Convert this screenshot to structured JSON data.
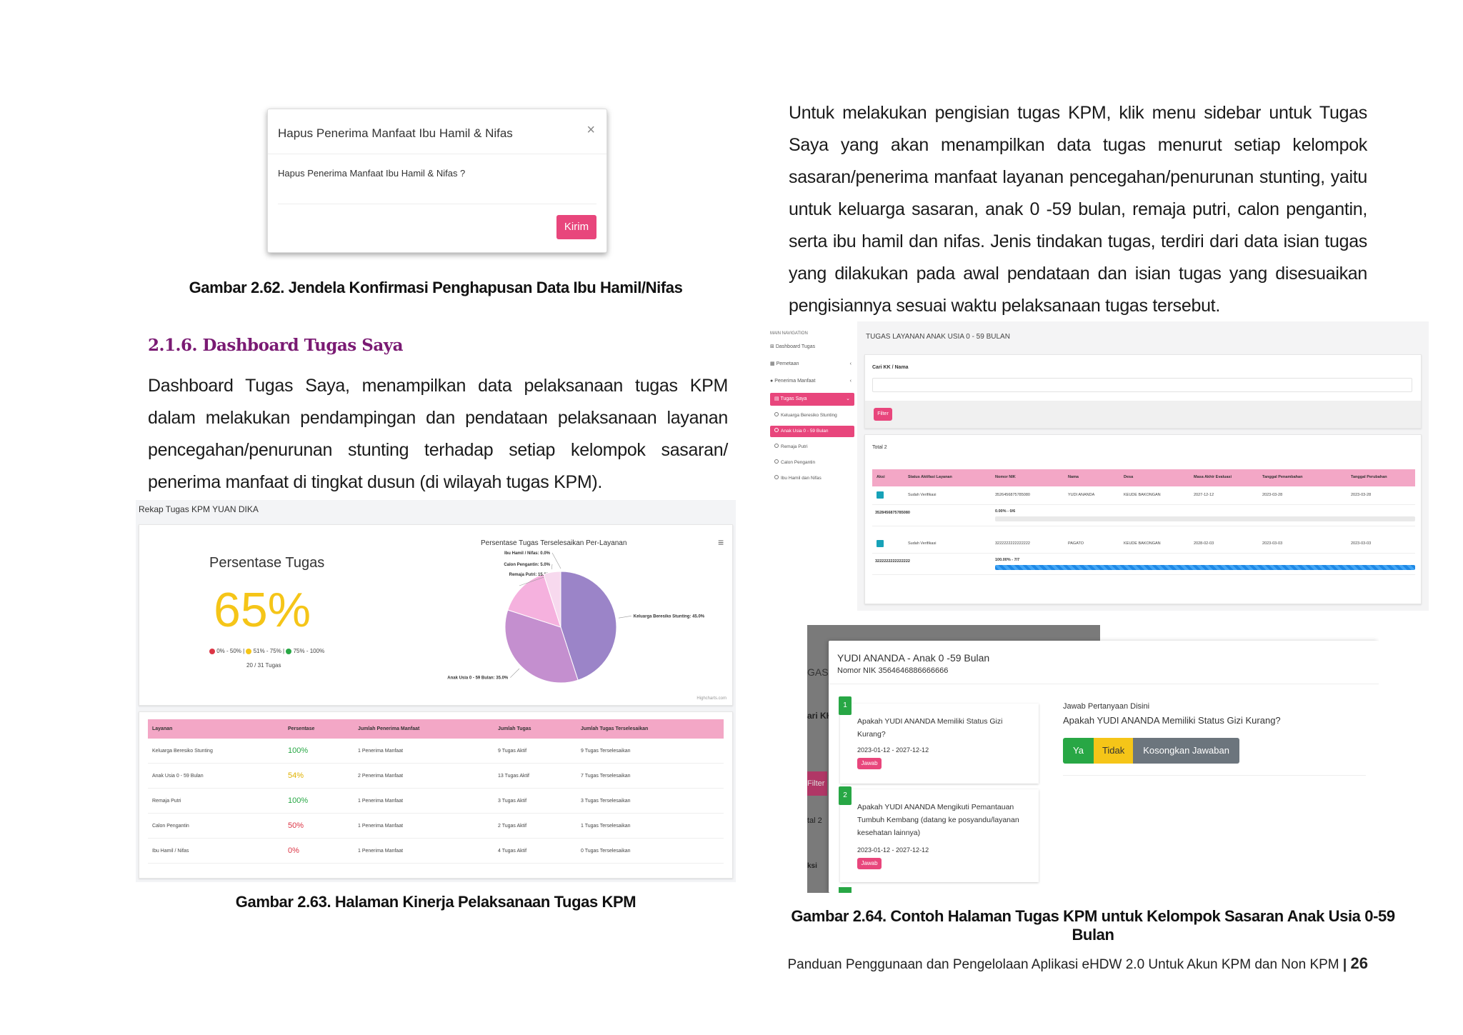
{
  "modal": {
    "title": "Hapus Penerima Manfaat Ibu Hamil & Nifas",
    "close": "×",
    "body": "Hapus Penerima Manfaat Ibu Hamil & Nifas ?",
    "button": "Kirim"
  },
  "caption_262": "Gambar 2.62. Jendela Konfirmasi Penghapusan Data Ibu Hamil/Nifas",
  "section": {
    "heading": "2.1.6. Dashboard Tugas Saya",
    "paragraph": "Dashboard Tugas Saya, menampilkan data pelaksanaan tugas KPM dalam melakukan pendampingan dan pendataan pelaksanaan layanan pencegahan/penurunan stunting terhadap setiap kelompok sasaran/ penerima manfaat di tingkat dusun (di wilayah tugas KPM)."
  },
  "right_paragraph": "Untuk melakukan pengisian tugas KPM, klik menu sidebar untuk Tugas Saya  yang akan menampilkan data tugas menurut setiap kelompok sasaran/penerima manfaat layanan pencegahan/penurunan stunting, yaitu untuk keluarga sasaran, anak 0 -59 bulan, remaja putri, calon pengantin, serta ibu hamil dan nifas. Jenis tindakan tugas, terdiri dari data isian tugas yang dilakukan pada awal pendataan dan isian tugas yang disesuaikan pengisiannya sesuai waktu pelaksanaan tugas tersebut.",
  "rekap": {
    "header": "Rekap Tugas KPM YUAN DIKA",
    "persentase_title": "Persentase Tugas",
    "persentase_value": "65%",
    "legend": [
      "0% - 50%",
      "51% - 75%",
      "75% - 100%"
    ],
    "legend_colors": [
      "#dc3545",
      "#f5c518",
      "#28a745"
    ],
    "count": "20 / 31 Tugas",
    "credit": "Highcharts.com",
    "menu_icon": "≡",
    "table_headers": [
      "Layanan",
      "Persentase",
      "Jumlah Penerima Manfaat",
      "Jumlah Tugas",
      "Jumlah Tugas Terselesaikan"
    ],
    "rows": [
      {
        "layanan": "Keluarga Beresiko Stunting",
        "persen": "100%",
        "color": "#28a745",
        "penerima": "1 Penerima Manfaat",
        "tugas": "9 Tugas Aktif",
        "selesai": "9 Tugas Terselesaikan"
      },
      {
        "layanan": "Anak Usia 0 - 59 Bulan",
        "persen": "54%",
        "color": "#e0b100",
        "penerima": "2 Penerima Manfaat",
        "tugas": "13 Tugas Aktif",
        "selesai": "7 Tugas Terselesaikan"
      },
      {
        "layanan": "Remaja Putri",
        "persen": "100%",
        "color": "#28a745",
        "penerima": "1 Penerima Manfaat",
        "tugas": "3 Tugas Aktif",
        "selesai": "3 Tugas Terselesaikan"
      },
      {
        "layanan": "Calon Pengantin",
        "persen": "50%",
        "color": "#dc3545",
        "penerima": "1 Penerima Manfaat",
        "tugas": "2 Tugas Aktif",
        "selesai": "1 Tugas Terselesaikan"
      },
      {
        "layanan": "Ibu Hamil / Nifas",
        "persen": "0%",
        "color": "#dc3545",
        "penerima": "1 Penerima Manfaat",
        "tugas": "4 Tugas Aktif",
        "selesai": "0 Tugas Terselesaikan"
      }
    ]
  },
  "chart_data": {
    "type": "pie",
    "title": "Persentase Tugas Terselesaikan Per-Layanan",
    "slices": [
      {
        "name": "Keluarga Beresiko Stunting",
        "value": 45.0,
        "label": "Keluarga Beresiko Stunting: 45.0%",
        "color": "#9b84c8"
      },
      {
        "name": "Anak Usia 0 - 59 Bulan",
        "value": 35.0,
        "label": "Anak Usia 0 - 59 Bulan: 35.0%",
        "color": "#c48fcf"
      },
      {
        "name": "Remaja Putri",
        "value": 15.0,
        "label": "Remaja Putri: 15.0%",
        "color": "#f5b1de"
      },
      {
        "name": "Calon Pengantin",
        "value": 5.0,
        "label": "Calon Pengantin: 5.0%",
        "color": "#f7d9ee"
      },
      {
        "name": "Ibu Hamil / Nifas",
        "value": 0.0,
        "label": "Ibu Hamil / Nifas: 0.0%",
        "color": "#fbe8f4"
      }
    ]
  },
  "caption_263": "Gambar 2.63. Halaman Kinerja Pelaksanaan Tugas KPM",
  "tugas": {
    "nav_header": "MAIN NAVIGATION",
    "nav": [
      {
        "label": "Dashboard Tugas",
        "icon": "dashboard-icon",
        "glyph": "⊞"
      },
      {
        "label": "Pemetaan",
        "icon": "map-icon",
        "glyph": "▦",
        "arrow": "‹"
      },
      {
        "label": "Penerima Manfaat",
        "icon": "user-icon",
        "glyph": "●",
        "arrow": "‹"
      }
    ],
    "active": "Tugas Saya",
    "active_arrow": "⌄",
    "sub": [
      "Keluarga Beresiko Stunting",
      "Anak Usia 0 - 59 Bulan",
      "Remaja Putri",
      "Calon Pengantin",
      "Ibu Hamil dan Nifas"
    ],
    "title": "TUGAS LAYANAN ANAK USIA 0 - 59 BULAN",
    "search_label": "Cari KK / Nama",
    "filter": "Filter",
    "total": "Total 2",
    "headers": [
      "Aksi",
      "Status Aktifasi Layanan",
      "Nomor NIK",
      "Nama",
      "Desa",
      "Masa Akhir Evaluasi",
      "Tanggal Penambahan",
      "Tanggal Perubahan"
    ],
    "rows": [
      {
        "status": "Sudah Verifikasi",
        "nik": "3526456875785080",
        "nama": "YUDI ANANDA",
        "desa": "KEUDE BAKONGAN",
        "akhir": "2027-12-12",
        "tambah": "2023-03-28",
        "ubah": "2023-03-28",
        "sub_nik": "3528456875785080",
        "progress_label": "0.00% - 0/6",
        "progress": 0
      },
      {
        "status": "Sudah Verifikasi",
        "nik": "3222222222222222",
        "nama": "PAGATO",
        "desa": "KEUDE BAKONGAN",
        "akhir": "2028-02-03",
        "tambah": "2023-03-03",
        "ubah": "2023-03-03",
        "sub_nik": "3222222222222222",
        "progress_label": "100.00% - 7/7",
        "progress": 100
      }
    ]
  },
  "jawab": {
    "bg_labels": [
      "GAS",
      "ari KK /",
      "Filter",
      "tal 2",
      "ksi"
    ],
    "title": "YUDI ANANDA - Anak 0 -59 Bulan",
    "nik": "Nomor NIK 3564646886666666",
    "q1_num": "1",
    "q1_text": "Apakah YUDI ANANDA Memiliki Status Gizi Kurang?",
    "q1_date": "2023-01-12 - 2027-12-12",
    "q2_num": "2",
    "q2_text": "Apakah YUDI ANANDA Mengikuti Pemantauan Tumbuh Kembang (datang ke posyandu/layanan kesehatan lainnya)",
    "q2_date": "2023-01-12 - 2027-12-12",
    "jawab_btn": "Jawab",
    "answer_header": "Jawab Pertanyaan Disini",
    "answer_question": "Apakah YUDI ANANDA Memiliki Status Gizi Kurang?",
    "btn_ya": "Ya",
    "btn_tidak": "Tidak",
    "btn_kosong": "Kosongkan Jawaban"
  },
  "caption_264": "Gambar 2.64. Contoh Halaman Tugas KPM untuk Kelompok Sasaran Anak Usia 0-59 Bulan",
  "footer": {
    "text": "Panduan Penggunaan dan Pengelolaan Aplikasi eHDW 2.0 Untuk Akun KPM dan Non KPM",
    "sep": "|",
    "page": "26"
  }
}
